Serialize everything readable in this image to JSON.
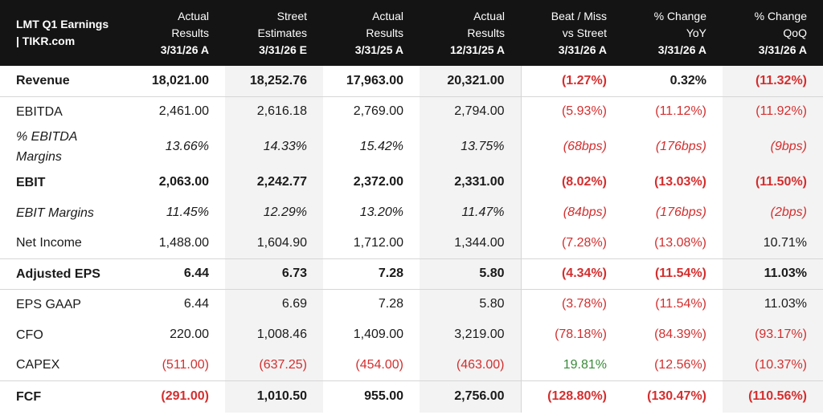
{
  "header": {
    "title_line1": "LMT Q1 Earnings",
    "title_line2": "| TIKR.com",
    "columns": [
      {
        "line1": "Actual",
        "line2": "Results",
        "line3": "3/31/26 A"
      },
      {
        "line1": "Street",
        "line2": "Estimates",
        "line3": "3/31/26 E"
      },
      {
        "line1": "Actual",
        "line2": "Results",
        "line3": "3/31/25 A"
      },
      {
        "line1": "Actual",
        "line2": "Results",
        "line3": "12/31/25 A"
      },
      {
        "line1": "Beat / Miss",
        "line2": "vs Street",
        "line3": "3/31/26 A"
      },
      {
        "line1": "% Change",
        "line2": "YoY",
        "line3": "3/31/26 A"
      },
      {
        "line1": "% Change",
        "line2": "QoQ",
        "line3": "3/31/26 A"
      }
    ]
  },
  "rows": [
    {
      "label": "Revenue",
      "values": [
        "18,021.00",
        "18,252.76",
        "17,963.00",
        "20,321.00",
        "(1.27%)",
        "0.32%",
        "(11.32%)"
      ]
    },
    {
      "label": "EBITDA",
      "values": [
        "2,461.00",
        "2,616.18",
        "2,769.00",
        "2,794.00",
        "(5.93%)",
        "(11.12%)",
        "(11.92%)"
      ]
    },
    {
      "label": "% EBITDA Margins",
      "values": [
        "13.66%",
        "14.33%",
        "15.42%",
        "13.75%",
        "(68bps)",
        "(176bps)",
        "(9bps)"
      ]
    },
    {
      "label": "EBIT",
      "values": [
        "2,063.00",
        "2,242.77",
        "2,372.00",
        "2,331.00",
        "(8.02%)",
        "(13.03%)",
        "(11.50%)"
      ]
    },
    {
      "label": "EBIT Margins",
      "values": [
        "11.45%",
        "12.29%",
        "13.20%",
        "11.47%",
        "(84bps)",
        "(176bps)",
        "(2bps)"
      ]
    },
    {
      "label": "Net Income",
      "values": [
        "1,488.00",
        "1,604.90",
        "1,712.00",
        "1,344.00",
        "(7.28%)",
        "(13.08%)",
        "10.71%"
      ]
    },
    {
      "label": "Adjusted EPS",
      "values": [
        "6.44",
        "6.73",
        "7.28",
        "5.80",
        "(4.34%)",
        "(11.54%)",
        "11.03%"
      ]
    },
    {
      "label": "EPS GAAP",
      "values": [
        "6.44",
        "6.69",
        "7.28",
        "5.80",
        "(3.78%)",
        "(11.54%)",
        "11.03%"
      ]
    },
    {
      "label": "CFO",
      "values": [
        "220.00",
        "1,008.46",
        "1,409.00",
        "3,219.00",
        "(78.18%)",
        "(84.39%)",
        "(93.17%)"
      ]
    },
    {
      "label": "CAPEX",
      "values": [
        "(511.00)",
        "(637.25)",
        "(454.00)",
        "(463.00)",
        "19.81%",
        "(12.56%)",
        "(10.37%)"
      ]
    },
    {
      "label": "FCF",
      "values": [
        "(291.00)",
        "1,010.50",
        "955.00",
        "2,756.00",
        "(128.80%)",
        "(130.47%)",
        "(110.56%)"
      ]
    }
  ],
  "colors": {
    "header_bg": "#141414",
    "negative": "#d42e2e",
    "positive": "#3a8a3a",
    "shade": "#f3f3f3"
  }
}
